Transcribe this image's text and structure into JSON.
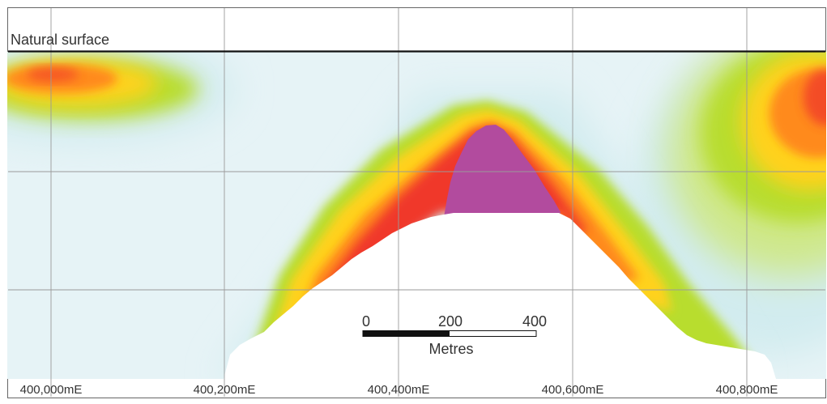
{
  "surface": {
    "label": "Natural surface"
  },
  "axis": {
    "ticks": [
      {
        "value": 400000,
        "label": "400,000mE"
      },
      {
        "value": 400200,
        "label": "400,200mE"
      },
      {
        "value": 400400,
        "label": "400,400mE"
      },
      {
        "value": 400600,
        "label": "400,600mE"
      },
      {
        "value": 400800,
        "label": "400,800mE"
      }
    ]
  },
  "scale_bar": {
    "ticks": [
      {
        "value": 0,
        "label": "0"
      },
      {
        "value": 200,
        "label": "200"
      },
      {
        "value": 400,
        "label": "400"
      }
    ],
    "unit": "Metres"
  },
  "colors": {
    "frame": "#666666",
    "grid": "#9a9a9a",
    "surface_line": "#111111",
    "background_low": "#e6f3f6",
    "green": "#b8dd2f",
    "yellow": "#ffd21a",
    "orange": "#ff8a1a",
    "red": "#f0382a",
    "magenta": "#b24b9e",
    "void": "#ffffff"
  }
}
